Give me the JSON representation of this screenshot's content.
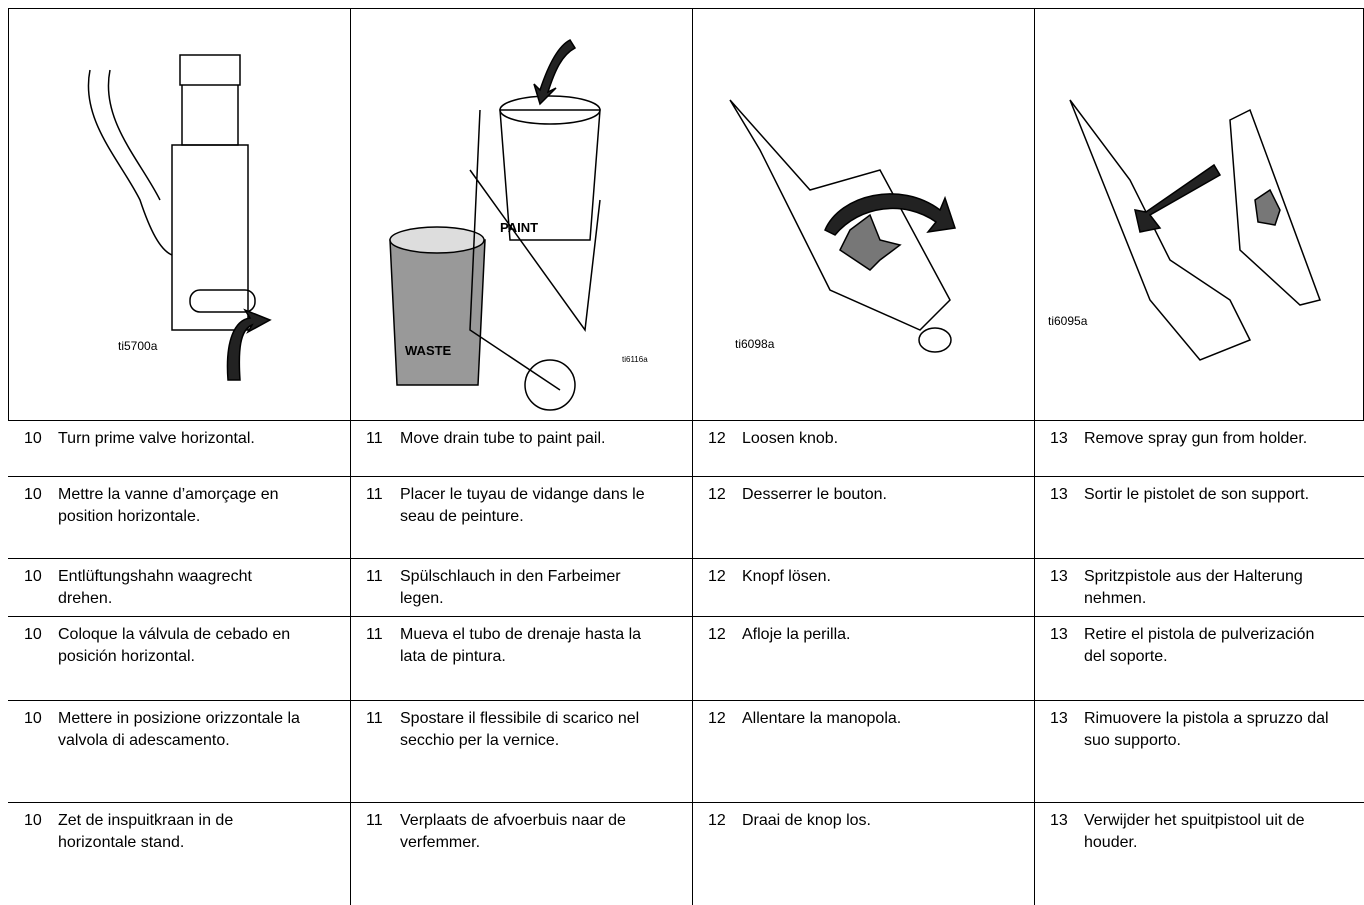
{
  "figures": [
    {
      "labels": [
        "ti5700a"
      ]
    },
    {
      "labels": [
        "PAINT",
        "WASTE",
        "ti6116a"
      ]
    },
    {
      "labels": [
        "ti6098a"
      ]
    },
    {
      "labels": [
        "ti6095a"
      ]
    }
  ],
  "table": {
    "rows": [
      [
        {
          "step": "10",
          "text": "Turn prime valve horizontal."
        },
        {
          "step": "11",
          "text": "Move drain tube to paint pail."
        },
        {
          "step": "12",
          "text": "Loosen knob."
        },
        {
          "step": "13",
          "text": "Remove spray gun from holder."
        }
      ],
      [
        {
          "step": "10",
          "text": "Mettre la vanne d’amorçage en position horizontale."
        },
        {
          "step": "11",
          "text": "Placer le tuyau de vidange dans le seau de peinture."
        },
        {
          "step": "12",
          "text": "Desserrer le bouton."
        },
        {
          "step": "13",
          "text": "Sortir le pistolet de son support."
        }
      ],
      [
        {
          "step": "10",
          "text": "Entlüftungshahn waagrecht drehen."
        },
        {
          "step": "11",
          "text": "Spülschlauch in den Farbeimer legen."
        },
        {
          "step": "12",
          "text": "Knopf lösen."
        },
        {
          "step": "13",
          "text": "Spritzpistole aus der Halterung nehmen."
        }
      ],
      [
        {
          "step": "10",
          "text": "Coloque la válvula de cebado en posición horizontal."
        },
        {
          "step": "11",
          "text": "Mueva el tubo de drenaje hasta la lata de pintura."
        },
        {
          "step": "12",
          "text": "Afloje la perilla."
        },
        {
          "step": "13",
          "text": "Retire el pistola de pulverización del soporte."
        }
      ],
      [
        {
          "step": "10",
          "text": "Mettere in posizione orizzontale la valvola di adescamento."
        },
        {
          "step": "11",
          "text": "Spostare il flessibile di scarico nel secchio per la vernice."
        },
        {
          "step": "12",
          "text": "Allentare la manopola."
        },
        {
          "step": "13",
          "text": "Rimuovere la pistola a spruzzo dal suo supporto."
        }
      ],
      [
        {
          "step": "10",
          "text": "Zet de inspuitkraan in de horizontale stand."
        },
        {
          "step": "11",
          "text": "Verplaats de afvoerbuis naar de verfemmer."
        },
        {
          "step": "12",
          "text": "Draai de knop los."
        },
        {
          "step": "13",
          "text": "Verwijder het spuitpistool uit de houder."
        }
      ]
    ]
  }
}
